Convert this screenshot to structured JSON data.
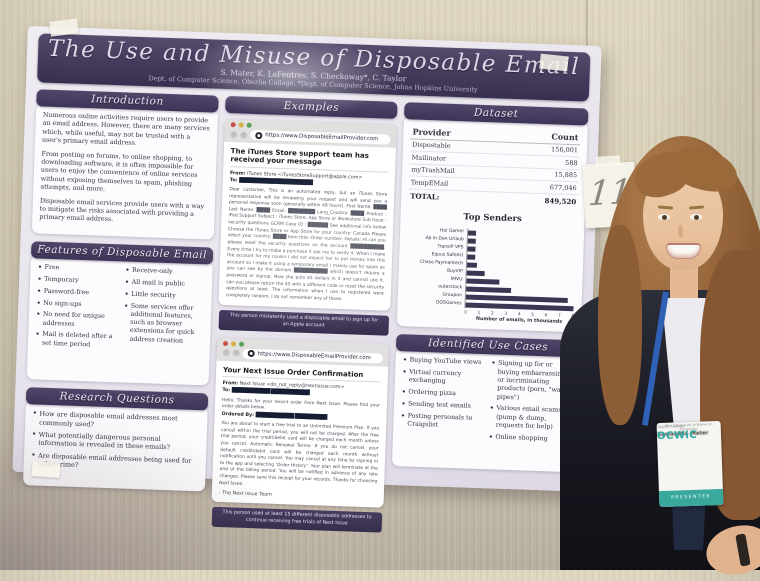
{
  "scene": {
    "room_sign_number": "11",
    "badge": {
      "name": "Samantha Mater",
      "line2": "Oberlin College",
      "org": "OCWiC",
      "tagline": "Ohio Celebration of Women in Computing",
      "strip": "PRESENTER"
    }
  },
  "poster": {
    "title": "The Use and Misuse of Disposable Email",
    "authors": "S. Mater, K. LaFentres, S. Checkoway*, C. Taylor",
    "affiliation": "Dept. of Computer Science, Oberlin College, *Dept. of Computer Science, Johns Hopkins University",
    "introduction": {
      "heading": "Introduction",
      "paragraphs": [
        "Numerous online activities require users to provide an email address. However, there are many services which, while useful, may not be trusted with a user's primary email address.",
        "From posting on forums, to online shopping, to downloading software, it is often impossible for users to enjoy the convenience of online services without exposing themselves to spam, phishing attempts, and more.",
        "Disposable email services provide users with a way to mitigate the risks associated with providing a primary email address."
      ]
    },
    "features": {
      "heading": "Features of Disposable Email",
      "left": [
        "Free",
        "Temporary",
        "Password-free",
        "No sign-ups",
        "No need for unique addresses",
        "Mail is deleted after a set time period"
      ],
      "right": [
        "Receive-only",
        "All mail is public",
        "Little security",
        "Some services offer additional features, such as browser extensions for quick address creation"
      ]
    },
    "research_questions": {
      "heading": "Research Questions",
      "items": [
        "How are disposable email addresses most commonly used?",
        "What potentially dangerous personal information is revealed in these emails?",
        "Are disposable email addresses being used for cybercrime?"
      ]
    },
    "examples": {
      "heading": "Examples",
      "url": "https://www.DisposableEmailProvider.com",
      "browser1": {
        "subject": "The iTunes Store support team has received your message",
        "from_label": "From:",
        "from_value": "iTunes Store <iTunesStoreSupport@apple.com>",
        "to_label": "To:",
        "to_redacted": "███████████████████████",
        "body": "Dear customer, This is an automated reply, but an iTunes Store representative will be reviewing your request and will send you a personal response soon (generally within 48 hours). First Name: ████ Last Name: ████ Email: ████████ Lang_Country: ████ Product : iPad  Support Subject : iTunes Store, App Store or iBookstore  Sub Issue : security questions  GCRM Case ID : ██████ See additional info below Choose the iTunes Store or App Store for your country: Canada  Please select your country: ████ Item title: Order number: Details: Hi can you please reset the security questions on the account ██████████. Every time I try to make a purchase it ask me to verify it. When I make the account for my cousin I did not expect her to put money into this account so I make it using a temporary email I mainly use for spam as you can see by the domain ██████████ which doesn't require a password or signup. Now she puts $5 dollars in it and cannot use it, can you please return the $5 with a different code or reset the security questions at least. The information when I use to registered were completely random, I do not remember any of those."
      },
      "caption1": "This person mistakenly used a disposable email to sign up for an Apple account",
      "browser2": {
        "subject": "Your Next Issue Order Confirmation",
        "from_label": "From:",
        "from_value": "Next Issue <do_not_reply@nextissue.com>",
        "to_label": "To:",
        "to_redacted": "████████████  ████████████",
        "intro_line": "Hello, Thanks for your recent order from Next Issue. Please find your order details below.",
        "ordered_label": "Ordered By:",
        "ordered_redacted": "████████████ ██████████",
        "body": "You are about to start a free trial to an Unlimited Premium Plan. If you cancel within the trial period, you will not be charged. After the free trial period, your credit/debit card will be charged each month unless you cancel. Automatic Renewal Terms: If you do not cancel, your default credit/debit card will be charged each month without notification until you cancel. You may cancel at any time by signing in to the app and selecting 'Order History'. Your plan will terminate at the end of the billing period. You will be notified in advance of any rate changes. Please save this receipt for your records. Thanks for choosing Next Issue.",
        "signature": "- The Next Issue Team"
      },
      "caption2": "This person used at least 15 different disposable addresses to continue receiving free trials of Next Issue"
    },
    "dataset": {
      "heading": "Dataset",
      "columns": [
        "Provider",
        "Count"
      ],
      "rows": [
        [
          "Dispostable",
          "156,001"
        ],
        [
          "Mailinator",
          "588"
        ],
        [
          "myTrashMail",
          "15,885"
        ],
        [
          "TempEMail",
          "677,046"
        ]
      ],
      "total": [
        "TOTAL:",
        "849,520"
      ]
    },
    "use_cases": {
      "heading": "Identified Use Cases",
      "left": [
        "Buying YouTube views",
        "Virtual currency exchanging",
        "Ordering pizza",
        "Sending test emails",
        "Posting personals to Craigslist"
      ],
      "right": [
        "Signing up for or buying embarrassing or incriminating products (porn, \"water pipes\")",
        "Various email scams (pump & dump, requests for help)",
        "Online shopping"
      ]
    }
  },
  "chart_data": {
    "type": "bar",
    "orientation": "horizontal",
    "title": "Top Senders",
    "categories": [
      "Hol Gamer",
      "Ab In Den Urlaub",
      "TransIP VPS",
      "Equus Safelist",
      "Chase Paymentech",
      "BuyVIP",
      "IMVU",
      "outerstock",
      "Groupon",
      "DOSGames"
    ],
    "values": [
      0.6,
      0.6,
      0.6,
      0.6,
      0.7,
      1.3,
      2.4,
      3.3,
      7.5,
      7.9
    ],
    "xlabel": "Number of emails, in thousands",
    "xlim": [
      0,
      8
    ],
    "xticks": [
      "0",
      "1",
      "2",
      "3",
      "4",
      "5",
      "6",
      "7",
      "8"
    ],
    "grid": false,
    "legend": false
  }
}
